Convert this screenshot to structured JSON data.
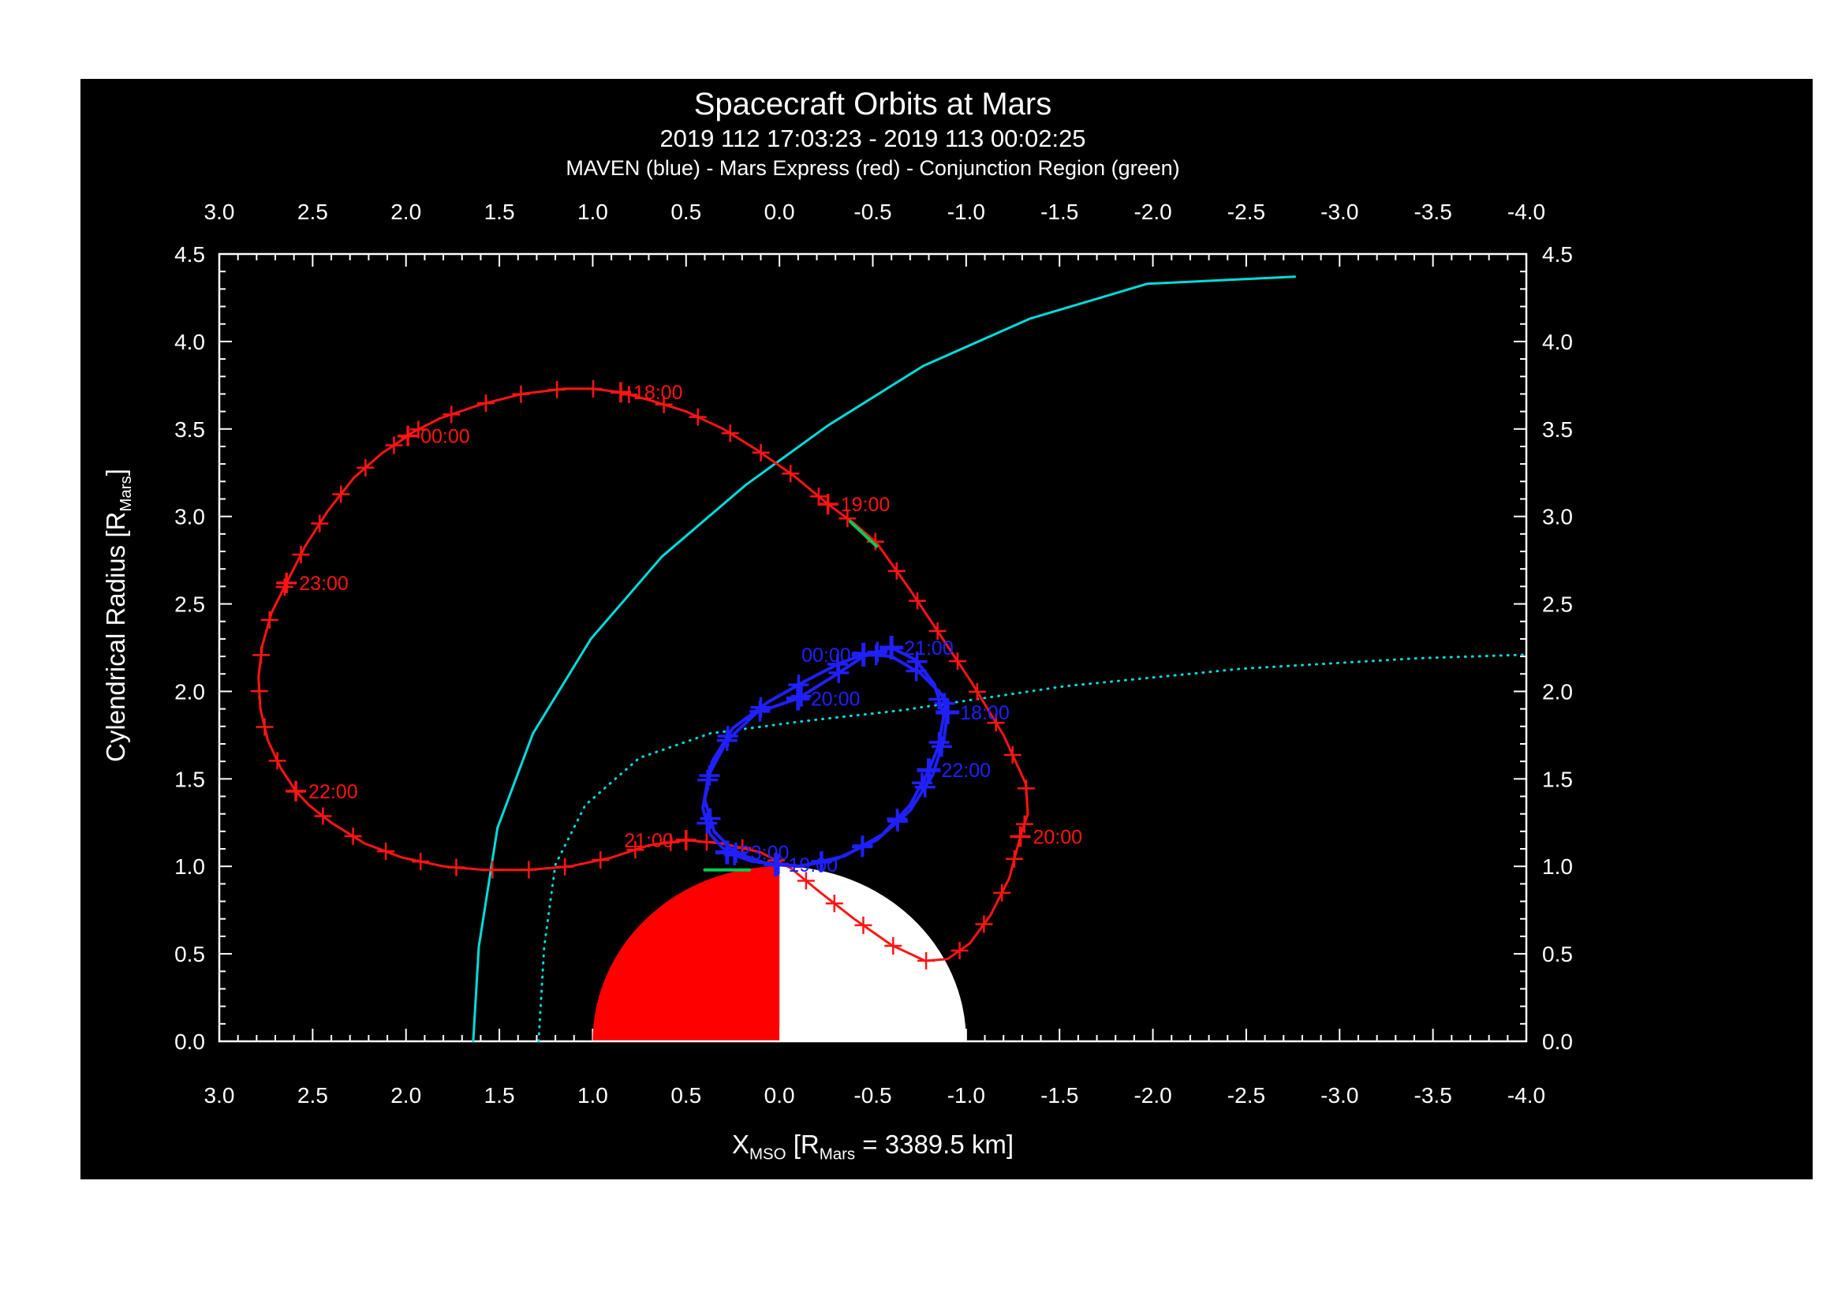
{
  "chart_data": {
    "type": "line",
    "title": "Spacecraft Orbits at Mars",
    "subtitle": "2019 112 17:03:23 - 2019 113 00:02:25",
    "legend_line": "MAVEN (blue) - Mars Express (red) - Conjunction Region (green)",
    "x_title": {
      "main": "X",
      "sub": "MSO",
      "mid": " [R",
      "sub2": "Mars",
      "tail": " = 3389.5 km]"
    },
    "y_title": {
      "pre": "Cylendrical Radius [R",
      "sub": "Mars",
      "post": "]"
    },
    "x_axis": {
      "range": [
        3.0,
        -4.0
      ],
      "major_step": 0.5,
      "minor_step": 0.1,
      "tick_labels": [
        "3.0",
        "2.5",
        "2.0",
        "1.5",
        "1.0",
        "0.5",
        "0.0",
        "-0.5",
        "-1.0",
        "-1.5",
        "-2.0",
        "-2.5",
        "-3.0",
        "-3.5",
        "-4.0"
      ]
    },
    "y_axis": {
      "range": [
        0.0,
        4.5
      ],
      "major_step": 0.5,
      "minor_step": 0.1,
      "tick_labels": [
        "0.0",
        "0.5",
        "1.0",
        "1.5",
        "2.0",
        "2.5",
        "3.0",
        "3.5",
        "4.0",
        "4.5"
      ]
    },
    "mars": {
      "radius": 1.0,
      "dayside_color": "#ff0000",
      "nightside_color": "#ffffff"
    },
    "series": [
      {
        "name": "bow-shock-boundary",
        "color": "#00dcdc",
        "style": "solid",
        "width": 3,
        "points": [
          [
            1.64,
            0.0
          ],
          [
            1.61,
            0.54
          ],
          [
            1.51,
            1.22
          ],
          [
            1.32,
            1.76
          ],
          [
            1.01,
            2.3
          ],
          [
            0.63,
            2.77
          ],
          [
            0.18,
            3.18
          ],
          [
            -0.26,
            3.52
          ],
          [
            -0.77,
            3.86
          ],
          [
            -1.34,
            4.13
          ],
          [
            -1.97,
            4.33
          ],
          [
            -2.76,
            4.37
          ]
        ]
      },
      {
        "name": "mpb-boundary",
        "color": "#00dcdc",
        "style": "dotted",
        "width": 3,
        "points": [
          [
            1.29,
            0.0
          ],
          [
            1.26,
            0.54
          ],
          [
            1.2,
            1.01
          ],
          [
            1.04,
            1.35
          ],
          [
            0.75,
            1.62
          ],
          [
            0.37,
            1.76
          ],
          [
            -0.13,
            1.83
          ],
          [
            -0.64,
            1.89
          ],
          [
            -1.53,
            2.03
          ],
          [
            -2.48,
            2.13
          ],
          [
            -3.43,
            2.19
          ],
          [
            -4.0,
            2.21
          ]
        ]
      },
      {
        "name": "mars-express-orbit",
        "color": "#ff1414",
        "style": "solid",
        "width": 3,
        "marker_spacing": 46,
        "marker_size": 11,
        "points": [
          [
            2.02,
            3.45
          ],
          [
            1.82,
            3.56
          ],
          [
            1.6,
            3.64
          ],
          [
            1.38,
            3.7
          ],
          [
            1.15,
            3.73
          ],
          [
            1.0,
            3.73
          ],
          [
            0.85,
            3.71
          ],
          [
            0.68,
            3.66
          ],
          [
            0.5,
            3.6
          ],
          [
            0.3,
            3.5
          ],
          [
            0.12,
            3.38
          ],
          [
            -0.08,
            3.23
          ],
          [
            -0.26,
            3.07
          ],
          [
            -0.4,
            2.96
          ],
          [
            -0.52,
            2.85
          ],
          [
            -0.7,
            2.58
          ],
          [
            -0.85,
            2.34
          ],
          [
            -1.03,
            2.05
          ],
          [
            -1.2,
            1.75
          ],
          [
            -1.32,
            1.47
          ],
          [
            -1.33,
            1.3
          ],
          [
            -1.29,
            1.17
          ],
          [
            -1.23,
            0.93
          ],
          [
            -1.13,
            0.72
          ],
          [
            -1.02,
            0.56
          ],
          [
            -0.9,
            0.47
          ],
          [
            -0.78,
            0.46
          ],
          [
            -0.6,
            0.55
          ],
          [
            -0.4,
            0.7
          ],
          [
            -0.22,
            0.85
          ],
          [
            -0.06,
            0.99
          ],
          [
            0.1,
            1.08
          ],
          [
            0.3,
            1.13
          ],
          [
            0.5,
            1.15
          ],
          [
            0.7,
            1.12
          ],
          [
            0.9,
            1.05
          ],
          [
            1.12,
            1.0
          ],
          [
            1.35,
            0.98
          ],
          [
            1.58,
            0.98
          ],
          [
            1.8,
            1.0
          ],
          [
            2.02,
            1.05
          ],
          [
            2.22,
            1.13
          ],
          [
            2.4,
            1.25
          ],
          [
            2.52,
            1.35
          ],
          [
            2.59,
            1.43
          ],
          [
            2.67,
            1.56
          ],
          [
            2.74,
            1.72
          ],
          [
            2.78,
            1.9
          ],
          [
            2.79,
            2.08
          ],
          [
            2.77,
            2.26
          ],
          [
            2.72,
            2.45
          ],
          [
            2.64,
            2.62
          ],
          [
            2.54,
            2.83
          ],
          [
            2.42,
            3.03
          ],
          [
            2.28,
            3.22
          ],
          [
            2.13,
            3.36
          ],
          [
            1.99,
            3.46
          ]
        ]
      },
      {
        "name": "maven-orbit",
        "color": "#2020ff",
        "style": "solid",
        "width": 4,
        "marker_spacing": 56,
        "marker_size": 13,
        "points": [
          [
            -0.4,
            2.22
          ],
          [
            -0.6,
            2.2
          ],
          [
            -0.76,
            2.1
          ],
          [
            -0.87,
            1.98
          ],
          [
            -0.9,
            1.88
          ],
          [
            -0.88,
            1.72
          ],
          [
            -0.82,
            1.52
          ],
          [
            -0.7,
            1.32
          ],
          [
            -0.52,
            1.15
          ],
          [
            -0.3,
            1.04
          ],
          [
            -0.1,
            1.0
          ],
          [
            0.02,
            1.01
          ],
          [
            0.15,
            1.03
          ],
          [
            0.28,
            1.08
          ],
          [
            0.37,
            1.18
          ],
          [
            0.41,
            1.33
          ],
          [
            0.38,
            1.52
          ],
          [
            0.28,
            1.72
          ],
          [
            0.12,
            1.88
          ],
          [
            -0.1,
            1.96
          ],
          [
            -0.28,
            2.08
          ],
          [
            -0.45,
            2.2
          ],
          [
            -0.6,
            2.25
          ],
          [
            -0.73,
            2.18
          ],
          [
            -0.83,
            2.04
          ],
          [
            -0.88,
            1.86
          ],
          [
            -0.85,
            1.68
          ],
          [
            -0.8,
            1.55
          ],
          [
            -0.7,
            1.35
          ],
          [
            -0.55,
            1.18
          ],
          [
            -0.35,
            1.06
          ],
          [
            -0.12,
            1.0
          ],
          [
            0.08,
            1.02
          ],
          [
            0.24,
            1.08
          ],
          [
            0.35,
            1.2
          ],
          [
            0.4,
            1.38
          ],
          [
            0.36,
            1.6
          ],
          [
            0.25,
            1.79
          ],
          [
            0.06,
            1.94
          ],
          [
            -0.14,
            2.06
          ],
          [
            -0.32,
            2.16
          ],
          [
            -0.45,
            2.21
          ],
          [
            -0.5,
            2.22
          ]
        ]
      },
      {
        "name": "conjunction-region-a",
        "color": "#00cc50",
        "style": "solid",
        "width": 4,
        "points": [
          [
            -0.52,
            2.83
          ],
          [
            -0.38,
            2.97
          ]
        ]
      },
      {
        "name": "conjunction-region-b",
        "color": "#00cc50",
        "style": "solid",
        "width": 4,
        "points": [
          [
            0.4,
            0.98
          ],
          [
            0.16,
            0.98
          ]
        ]
      }
    ],
    "time_labels": [
      {
        "series": "mars-express-orbit",
        "color": "#ff1414",
        "marker_size": 13,
        "marker_width": 3.5,
        "labels": [
          {
            "text": "18:00",
            "x": 0.85,
            "y": 3.71,
            "side": "right"
          },
          {
            "text": "19:00",
            "x": -0.26,
            "y": 3.07,
            "side": "right"
          },
          {
            "text": "20:00",
            "x": -1.29,
            "y": 1.17,
            "side": "right"
          },
          {
            "text": "21:00",
            "x": 0.5,
            "y": 1.15,
            "side": "left"
          },
          {
            "text": "22:00",
            "x": 2.59,
            "y": 1.43,
            "side": "right"
          },
          {
            "text": "23:00",
            "x": 2.64,
            "y": 2.62,
            "side": "right"
          },
          {
            "text": "00:00",
            "x": 1.99,
            "y": 3.46,
            "side": "right"
          }
        ]
      },
      {
        "series": "maven-orbit",
        "color": "#2020ff",
        "marker_size": 15,
        "marker_width": 5,
        "labels": [
          {
            "text": "18:00",
            "x": -0.9,
            "y": 1.88,
            "side": "right"
          },
          {
            "text": "19:00",
            "x": 0.02,
            "y": 1.01,
            "side": "right"
          },
          {
            "text": "20:00",
            "x": -0.1,
            "y": 1.96,
            "side": "right"
          },
          {
            "text": "21:00",
            "x": -0.6,
            "y": 2.25,
            "side": "right"
          },
          {
            "text": "22:00",
            "x": -0.8,
            "y": 1.55,
            "side": "right"
          },
          {
            "text": "23:00",
            "x": 0.28,
            "y": 1.08,
            "side": "right"
          },
          {
            "text": "00:00",
            "x": -0.45,
            "y": 2.21,
            "side": "left"
          }
        ]
      }
    ]
  }
}
